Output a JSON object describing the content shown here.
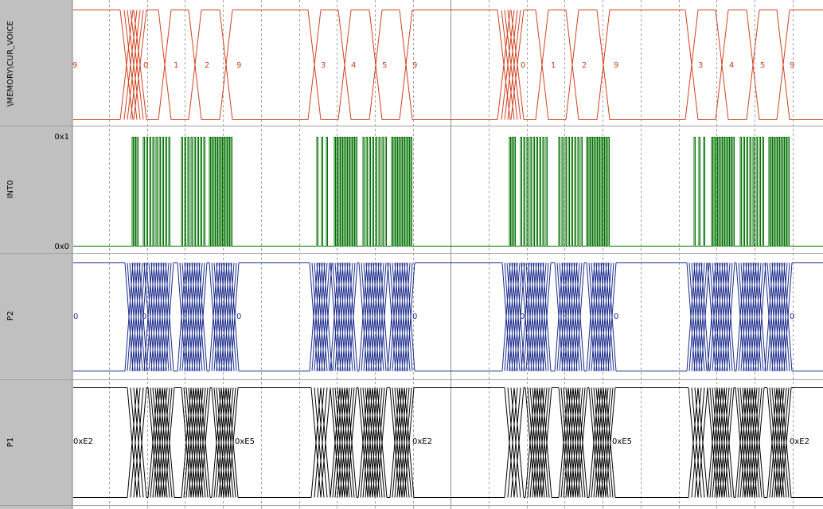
{
  "lanes": [
    {
      "name": "\\MEMORY\\CUR_VOICE",
      "labels": [
        "9",
        "0",
        "1",
        "2",
        "9",
        "3",
        "4",
        "5",
        "9",
        "0",
        "1",
        "2",
        "9",
        "3",
        "4",
        "5",
        "9"
      ]
    },
    {
      "name": "INT0",
      "high": "0x1",
      "low": "0x0"
    },
    {
      "name": "P2",
      "labels": [
        "0",
        "0",
        "0",
        "0",
        "0",
        "0",
        "0"
      ]
    },
    {
      "name": "P1",
      "labels": [
        "0xE2",
        "0xE5",
        "0xE2",
        "0xE5",
        "0xE2"
      ]
    }
  ]
}
